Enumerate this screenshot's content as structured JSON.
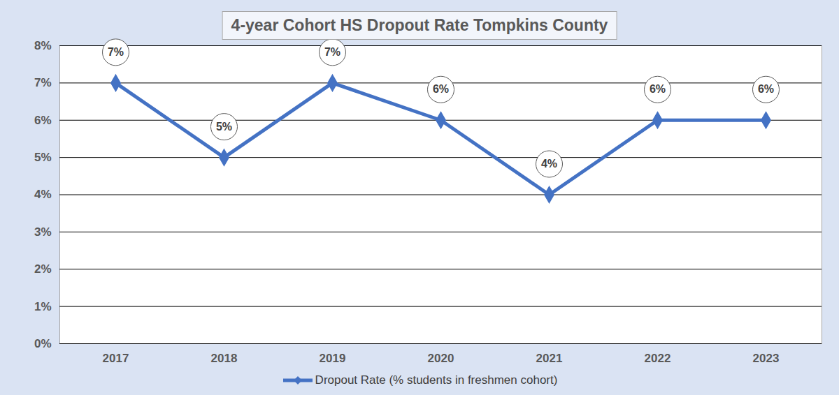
{
  "chart_data": {
    "type": "line",
    "title": "4-year Cohort HS Dropout Rate Tompkins County",
    "categories": [
      "2017",
      "2018",
      "2019",
      "2020",
      "2021",
      "2022",
      "2023"
    ],
    "series": [
      {
        "name": "Dropout Rate (% students in freshmen cohort)",
        "color": "#4472c4",
        "marker": "diamond",
        "values": [
          7,
          5,
          7,
          6,
          4,
          6,
          6
        ],
        "value_labels": [
          "7%",
          "5%",
          "7%",
          "6%",
          "4%",
          "6%",
          "6%"
        ]
      }
    ],
    "ylim": [
      0,
      8
    ],
    "yticks": [
      {
        "value": 0,
        "label": "0%"
      },
      {
        "value": 1,
        "label": "1%"
      },
      {
        "value": 2,
        "label": "2%"
      },
      {
        "value": 3,
        "label": "3%"
      },
      {
        "value": 4,
        "label": "4%"
      },
      {
        "value": 5,
        "label": "5%"
      },
      {
        "value": 6,
        "label": "6%"
      },
      {
        "value": 7,
        "label": "7%"
      },
      {
        "value": 8,
        "label": "8%"
      }
    ],
    "grid": true,
    "data_labels": true,
    "legend": "bottom"
  }
}
